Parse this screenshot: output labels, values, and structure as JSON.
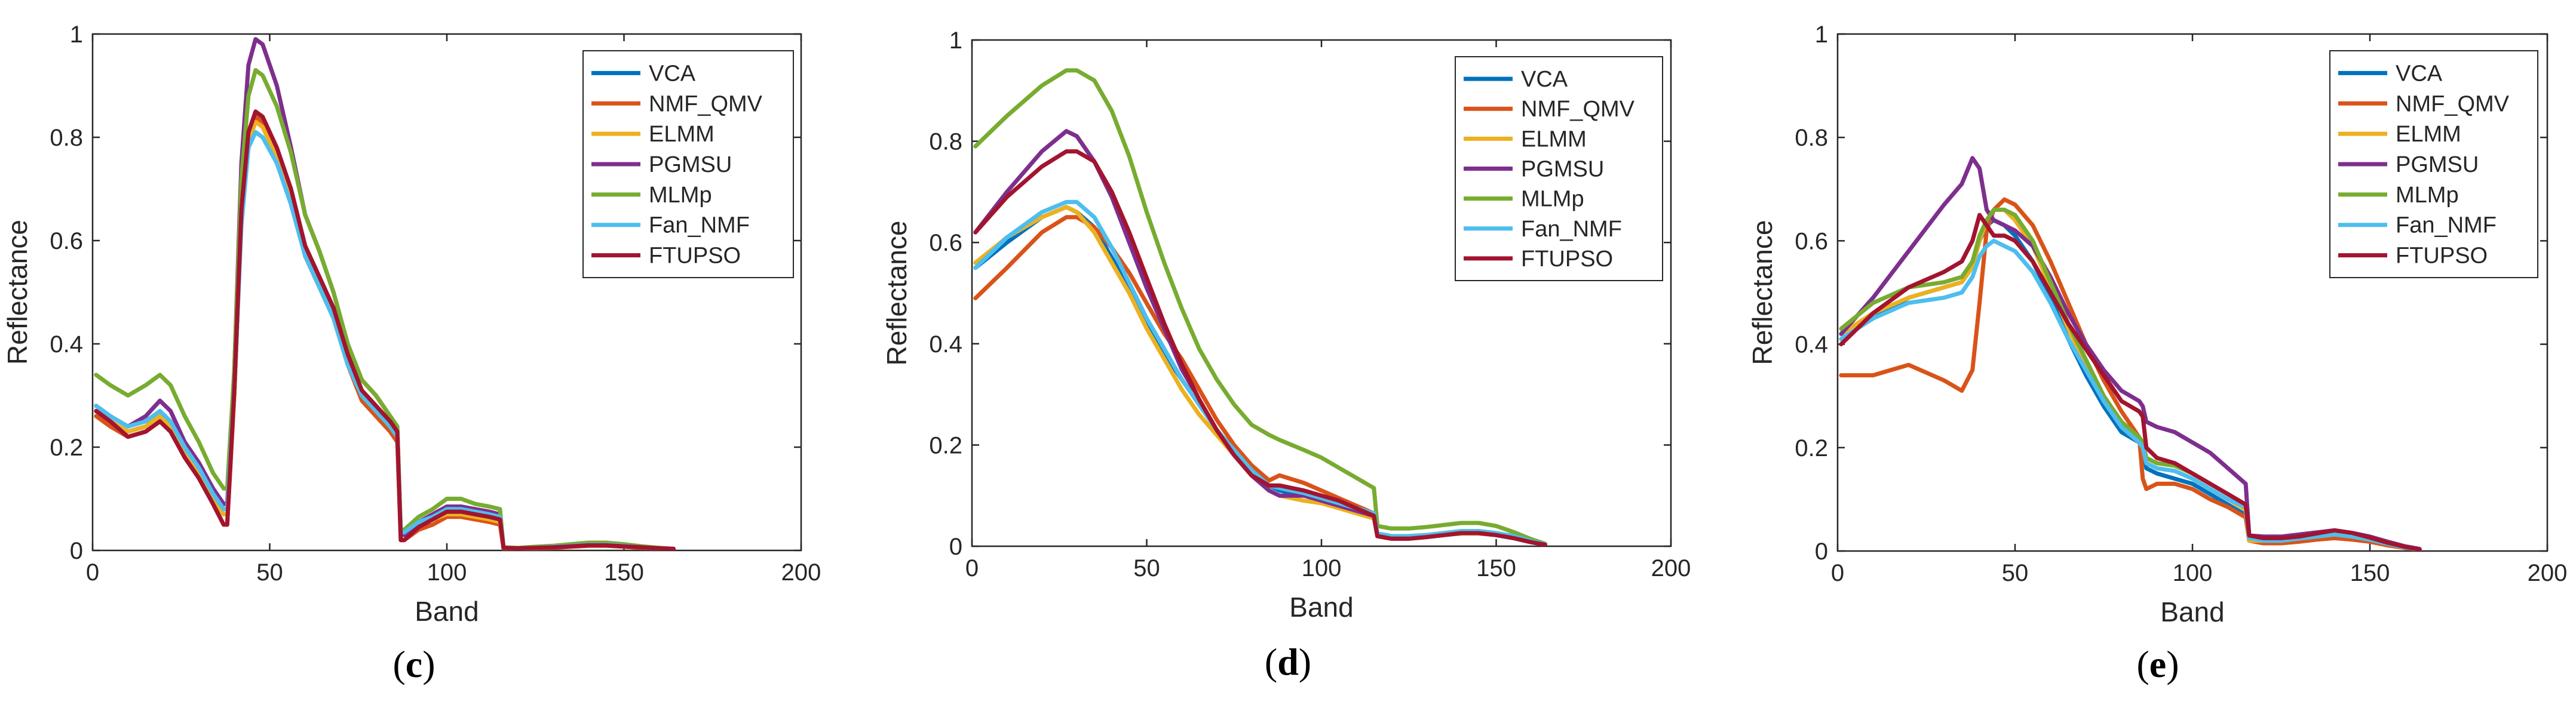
{
  "legend_labels": [
    "VCA",
    "NMF_QMV",
    "ELMM",
    "PGMSU",
    "MLMp",
    "Fan_NMF",
    "FTUPSO"
  ],
  "colors": {
    "VCA": "#0072BD",
    "NMF_QMV": "#D95319",
    "ELMM": "#EDB120",
    "PGMSU": "#7E2F8E",
    "MLMp": "#77AC30",
    "Fan_NMF": "#4DBEEE",
    "FTUPSO": "#A2142F"
  },
  "chart_data": [
    {
      "type": "line",
      "caption": "c",
      "xlabel": "Band",
      "ylabel": "Reflectance",
      "xlim": [
        0,
        200
      ],
      "ylim": [
        0,
        1
      ],
      "xticks": [
        "0",
        "50",
        "100",
        "150",
        "200"
      ],
      "yticks": [
        "0",
        "0.2",
        "0.4",
        "0.6",
        "0.8",
        "1"
      ],
      "legend_position": "top-right",
      "x": [
        1,
        5,
        10,
        15,
        19,
        22,
        26,
        30,
        34,
        37,
        38,
        40,
        42,
        44,
        46,
        48,
        52,
        56,
        60,
        64,
        68,
        72,
        76,
        80,
        84,
        86,
        87,
        88,
        92,
        96,
        100,
        104,
        108,
        112,
        115,
        116,
        120,
        125,
        130,
        135,
        140,
        145,
        150,
        155,
        160,
        164
      ],
      "series": [
        {
          "name": "VCA",
          "values": [
            0.27,
            0.25,
            0.23,
            0.24,
            0.26,
            0.24,
            0.19,
            0.15,
            0.1,
            0.07,
            0.07,
            0.3,
            0.65,
            0.8,
            0.84,
            0.83,
            0.77,
            0.69,
            0.58,
            0.52,
            0.46,
            0.37,
            0.3,
            0.27,
            0.24,
            0.22,
            0.03,
            0.03,
            0.05,
            0.06,
            0.075,
            0.075,
            0.07,
            0.065,
            0.06,
            0.005,
            0.004,
            0.005,
            0.006,
            0.008,
            0.01,
            0.01,
            0.008,
            0.006,
            0.004,
            0.003
          ]
        },
        {
          "name": "NMF_QMV",
          "values": [
            0.26,
            0.24,
            0.22,
            0.23,
            0.25,
            0.23,
            0.18,
            0.14,
            0.09,
            0.05,
            0.05,
            0.3,
            0.65,
            0.8,
            0.84,
            0.83,
            0.76,
            0.68,
            0.57,
            0.51,
            0.45,
            0.36,
            0.29,
            0.26,
            0.23,
            0.21,
            0.02,
            0.02,
            0.04,
            0.05,
            0.065,
            0.065,
            0.06,
            0.055,
            0.05,
            0.004,
            0.003,
            0.004,
            0.005,
            0.007,
            0.009,
            0.009,
            0.007,
            0.005,
            0.004,
            0.003
          ]
        },
        {
          "name": "ELMM",
          "values": [
            0.27,
            0.25,
            0.23,
            0.24,
            0.26,
            0.24,
            0.19,
            0.15,
            0.1,
            0.07,
            0.07,
            0.3,
            0.64,
            0.79,
            0.83,
            0.82,
            0.76,
            0.68,
            0.57,
            0.51,
            0.45,
            0.36,
            0.3,
            0.27,
            0.24,
            0.22,
            0.03,
            0.03,
            0.05,
            0.06,
            0.07,
            0.07,
            0.065,
            0.06,
            0.055,
            0.005,
            0.004,
            0.005,
            0.006,
            0.008,
            0.01,
            0.01,
            0.008,
            0.006,
            0.004,
            0.003
          ]
        },
        {
          "name": "PGMSU",
          "values": [
            0.28,
            0.26,
            0.24,
            0.26,
            0.29,
            0.27,
            0.21,
            0.17,
            0.12,
            0.09,
            0.09,
            0.35,
            0.75,
            0.94,
            0.99,
            0.98,
            0.9,
            0.78,
            0.65,
            0.58,
            0.5,
            0.4,
            0.33,
            0.3,
            0.26,
            0.24,
            0.03,
            0.03,
            0.055,
            0.07,
            0.085,
            0.085,
            0.08,
            0.075,
            0.07,
            0.005,
            0.004,
            0.006,
            0.008,
            0.011,
            0.013,
            0.013,
            0.01,
            0.007,
            0.005,
            0.003
          ]
        },
        {
          "name": "MLMp",
          "values": [
            0.34,
            0.32,
            0.3,
            0.32,
            0.34,
            0.32,
            0.26,
            0.21,
            0.15,
            0.12,
            0.12,
            0.35,
            0.72,
            0.88,
            0.93,
            0.92,
            0.86,
            0.77,
            0.65,
            0.58,
            0.5,
            0.4,
            0.33,
            0.3,
            0.26,
            0.24,
            0.04,
            0.04,
            0.065,
            0.08,
            0.1,
            0.1,
            0.09,
            0.085,
            0.08,
            0.006,
            0.005,
            0.007,
            0.009,
            0.012,
            0.015,
            0.015,
            0.012,
            0.008,
            0.005,
            0.003
          ]
        },
        {
          "name": "Fan_NMF",
          "values": [
            0.28,
            0.26,
            0.24,
            0.25,
            0.27,
            0.25,
            0.2,
            0.16,
            0.11,
            0.08,
            0.08,
            0.31,
            0.63,
            0.78,
            0.81,
            0.8,
            0.75,
            0.67,
            0.57,
            0.51,
            0.45,
            0.36,
            0.3,
            0.27,
            0.24,
            0.22,
            0.035,
            0.035,
            0.055,
            0.065,
            0.08,
            0.08,
            0.075,
            0.07,
            0.065,
            0.005,
            0.004,
            0.005,
            0.007,
            0.009,
            0.011,
            0.011,
            0.009,
            0.006,
            0.004,
            0.003
          ]
        },
        {
          "name": "FTUPSO",
          "values": [
            0.27,
            0.25,
            0.22,
            0.23,
            0.25,
            0.23,
            0.18,
            0.14,
            0.09,
            0.05,
            0.05,
            0.31,
            0.66,
            0.81,
            0.85,
            0.84,
            0.78,
            0.7,
            0.59,
            0.53,
            0.47,
            0.38,
            0.31,
            0.28,
            0.25,
            0.23,
            0.02,
            0.02,
            0.045,
            0.06,
            0.075,
            0.075,
            0.07,
            0.065,
            0.06,
            0.005,
            0.004,
            0.005,
            0.006,
            0.008,
            0.01,
            0.01,
            0.008,
            0.006,
            0.004,
            0.003
          ]
        }
      ]
    },
    {
      "type": "line",
      "caption": "d",
      "xlabel": "Band",
      "ylabel": "Reflectance",
      "xlim": [
        0,
        200
      ],
      "ylim": [
        0,
        1
      ],
      "xticks": [
        "0",
        "50",
        "100",
        "150",
        "200"
      ],
      "yticks": [
        "0",
        "0.2",
        "0.4",
        "0.6",
        "0.8",
        "1"
      ],
      "legend_position": "top-right",
      "x": [
        1,
        10,
        20,
        27,
        30,
        35,
        40,
        45,
        50,
        55,
        60,
        65,
        70,
        75,
        80,
        85,
        88,
        95,
        100,
        105,
        110,
        115,
        116,
        120,
        125,
        130,
        135,
        140,
        145,
        150,
        155,
        160,
        164
      ],
      "series": [
        {
          "name": "VCA",
          "values": [
            0.55,
            0.6,
            0.65,
            0.67,
            0.66,
            0.63,
            0.57,
            0.51,
            0.44,
            0.38,
            0.33,
            0.28,
            0.23,
            0.19,
            0.15,
            0.12,
            0.11,
            0.1,
            0.09,
            0.08,
            0.07,
            0.06,
            0.02,
            0.015,
            0.015,
            0.018,
            0.022,
            0.026,
            0.026,
            0.022,
            0.016,
            0.008,
            0.003
          ]
        },
        {
          "name": "NMF_QMV",
          "values": [
            0.49,
            0.55,
            0.62,
            0.65,
            0.65,
            0.63,
            0.59,
            0.54,
            0.48,
            0.42,
            0.37,
            0.31,
            0.25,
            0.2,
            0.16,
            0.13,
            0.14,
            0.125,
            0.11,
            0.095,
            0.08,
            0.065,
            0.025,
            0.02,
            0.02,
            0.022,
            0.026,
            0.03,
            0.03,
            0.026,
            0.02,
            0.01,
            0.004
          ]
        },
        {
          "name": "ELMM",
          "values": [
            0.56,
            0.61,
            0.65,
            0.67,
            0.66,
            0.62,
            0.56,
            0.5,
            0.43,
            0.37,
            0.31,
            0.26,
            0.22,
            0.18,
            0.14,
            0.11,
            0.1,
            0.09,
            0.085,
            0.075,
            0.065,
            0.055,
            0.02,
            0.015,
            0.015,
            0.018,
            0.022,
            0.025,
            0.025,
            0.022,
            0.016,
            0.008,
            0.003
          ]
        },
        {
          "name": "PGMSU",
          "values": [
            0.62,
            0.7,
            0.78,
            0.82,
            0.81,
            0.76,
            0.69,
            0.6,
            0.51,
            0.43,
            0.35,
            0.29,
            0.23,
            0.18,
            0.14,
            0.11,
            0.1,
            0.1,
            0.09,
            0.08,
            0.07,
            0.06,
            0.02,
            0.015,
            0.015,
            0.018,
            0.022,
            0.026,
            0.026,
            0.022,
            0.016,
            0.008,
            0.003
          ]
        },
        {
          "name": "MLMp",
          "values": [
            0.79,
            0.85,
            0.91,
            0.94,
            0.94,
            0.92,
            0.86,
            0.77,
            0.66,
            0.56,
            0.47,
            0.39,
            0.33,
            0.28,
            0.24,
            0.22,
            0.21,
            0.19,
            0.175,
            0.155,
            0.135,
            0.115,
            0.04,
            0.035,
            0.035,
            0.038,
            0.042,
            0.046,
            0.046,
            0.04,
            0.028,
            0.014,
            0.005
          ]
        },
        {
          "name": "Fan_NMF",
          "values": [
            0.55,
            0.61,
            0.66,
            0.68,
            0.68,
            0.65,
            0.59,
            0.52,
            0.45,
            0.39,
            0.33,
            0.28,
            0.23,
            0.19,
            0.15,
            0.12,
            0.115,
            0.105,
            0.095,
            0.085,
            0.075,
            0.065,
            0.025,
            0.02,
            0.02,
            0.022,
            0.026,
            0.03,
            0.03,
            0.026,
            0.02,
            0.01,
            0.004
          ]
        },
        {
          "name": "FTUPSO",
          "values": [
            0.62,
            0.69,
            0.75,
            0.78,
            0.78,
            0.76,
            0.7,
            0.62,
            0.53,
            0.44,
            0.36,
            0.29,
            0.23,
            0.18,
            0.14,
            0.12,
            0.12,
            0.11,
            0.1,
            0.09,
            0.075,
            0.06,
            0.02,
            0.015,
            0.015,
            0.018,
            0.022,
            0.026,
            0.026,
            0.022,
            0.016,
            0.008,
            0.003
          ]
        }
      ]
    },
    {
      "type": "line",
      "caption": "e",
      "xlabel": "Band",
      "ylabel": "Reflectance",
      "xlim": [
        0,
        200
      ],
      "ylim": [
        0,
        1
      ],
      "xticks": [
        "0",
        "50",
        "100",
        "150",
        "200"
      ],
      "yticks": [
        "0",
        "0.2",
        "0.4",
        "0.6",
        "0.8",
        "1"
      ],
      "legend_position": "top-right",
      "x": [
        1,
        10,
        20,
        30,
        35,
        38,
        40,
        42,
        44,
        47,
        50,
        55,
        60,
        65,
        70,
        75,
        80,
        85,
        86,
        87,
        90,
        95,
        100,
        105,
        110,
        115,
        116,
        120,
        125,
        130,
        135,
        140,
        145,
        150,
        155,
        160,
        164
      ],
      "series": [
        {
          "name": "VCA",
          "values": [
            0.41,
            0.45,
            0.49,
            0.51,
            0.52,
            0.55,
            0.6,
            0.63,
            0.64,
            0.63,
            0.61,
            0.56,
            0.49,
            0.41,
            0.34,
            0.28,
            0.23,
            0.21,
            0.2,
            0.16,
            0.15,
            0.14,
            0.13,
            0.11,
            0.09,
            0.07,
            0.02,
            0.018,
            0.018,
            0.022,
            0.026,
            0.03,
            0.026,
            0.02,
            0.012,
            0.006,
            0.003
          ]
        },
        {
          "name": "NMF_QMV",
          "values": [
            0.34,
            0.34,
            0.36,
            0.33,
            0.31,
            0.35,
            0.48,
            0.62,
            0.66,
            0.68,
            0.67,
            0.63,
            0.56,
            0.48,
            0.4,
            0.33,
            0.27,
            0.22,
            0.14,
            0.12,
            0.13,
            0.13,
            0.12,
            0.1,
            0.085,
            0.065,
            0.02,
            0.015,
            0.015,
            0.018,
            0.022,
            0.025,
            0.022,
            0.018,
            0.011,
            0.006,
            0.003
          ]
        },
        {
          "name": "ELMM",
          "values": [
            0.42,
            0.46,
            0.49,
            0.51,
            0.52,
            0.55,
            0.6,
            0.64,
            0.66,
            0.66,
            0.64,
            0.59,
            0.51,
            0.43,
            0.36,
            0.29,
            0.24,
            0.21,
            0.2,
            0.17,
            0.16,
            0.155,
            0.14,
            0.12,
            0.1,
            0.08,
            0.02,
            0.02,
            0.02,
            0.024,
            0.028,
            0.032,
            0.028,
            0.022,
            0.014,
            0.007,
            0.003
          ]
        },
        {
          "name": "PGMSU",
          "values": [
            0.42,
            0.49,
            0.58,
            0.67,
            0.71,
            0.76,
            0.74,
            0.66,
            0.64,
            0.63,
            0.62,
            0.59,
            0.53,
            0.46,
            0.4,
            0.35,
            0.31,
            0.29,
            0.28,
            0.25,
            0.24,
            0.23,
            0.21,
            0.19,
            0.16,
            0.13,
            0.03,
            0.028,
            0.028,
            0.032,
            0.036,
            0.04,
            0.035,
            0.028,
            0.018,
            0.009,
            0.004
          ]
        },
        {
          "name": "MLMp",
          "values": [
            0.43,
            0.48,
            0.51,
            0.52,
            0.53,
            0.56,
            0.61,
            0.64,
            0.66,
            0.66,
            0.65,
            0.6,
            0.52,
            0.44,
            0.37,
            0.3,
            0.25,
            0.22,
            0.21,
            0.18,
            0.17,
            0.165,
            0.15,
            0.13,
            0.11,
            0.09,
            0.025,
            0.022,
            0.022,
            0.026,
            0.03,
            0.034,
            0.03,
            0.024,
            0.015,
            0.007,
            0.003
          ]
        },
        {
          "name": "Fan_NMF",
          "values": [
            0.41,
            0.45,
            0.48,
            0.49,
            0.5,
            0.53,
            0.57,
            0.59,
            0.6,
            0.59,
            0.58,
            0.54,
            0.48,
            0.41,
            0.35,
            0.29,
            0.24,
            0.21,
            0.2,
            0.17,
            0.16,
            0.155,
            0.14,
            0.12,
            0.1,
            0.085,
            0.025,
            0.02,
            0.02,
            0.024,
            0.028,
            0.032,
            0.028,
            0.022,
            0.014,
            0.007,
            0.003
          ]
        },
        {
          "name": "FTUPSO",
          "values": [
            0.4,
            0.46,
            0.51,
            0.54,
            0.56,
            0.6,
            0.65,
            0.63,
            0.61,
            0.61,
            0.6,
            0.56,
            0.5,
            0.44,
            0.39,
            0.34,
            0.29,
            0.27,
            0.26,
            0.2,
            0.18,
            0.17,
            0.15,
            0.13,
            0.11,
            0.09,
            0.03,
            0.025,
            0.025,
            0.028,
            0.034,
            0.04,
            0.035,
            0.026,
            0.016,
            0.008,
            0.003
          ]
        }
      ]
    }
  ]
}
